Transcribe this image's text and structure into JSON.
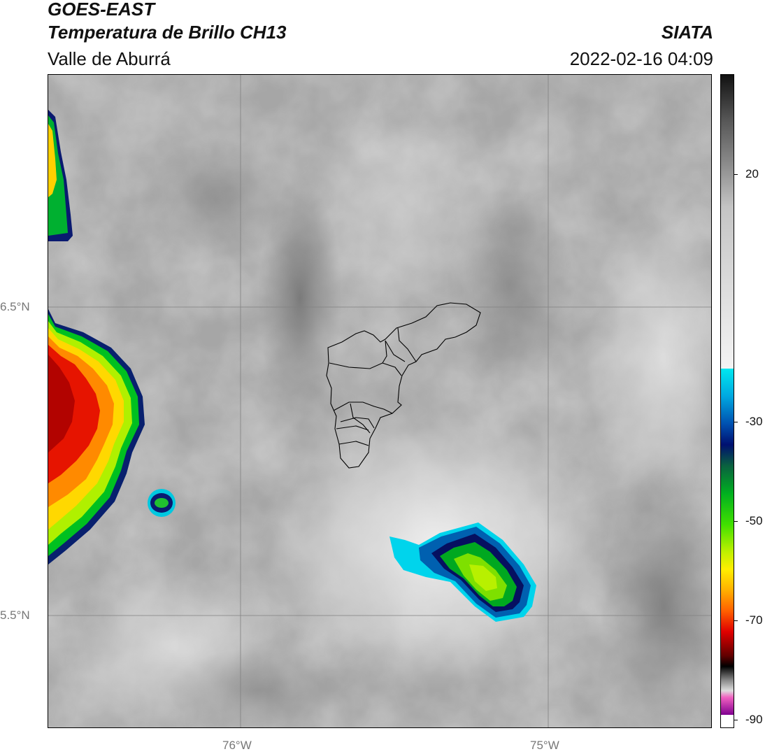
{
  "header": {
    "satellite": "GOES-EAST",
    "product": "Temperatura de Brillo CH13",
    "region": "Valle de Aburrá",
    "organization": "SIATA",
    "timestamp": "2022-02-16 04:09"
  },
  "map": {
    "lat_ticks": [
      "6.5°N",
      "5.5°N"
    ],
    "lon_ticks": [
      "76°W",
      "75°W"
    ],
    "boundary_outline": "Valle de Aburrá municipalities"
  },
  "colorbar": {
    "ticks": [
      "20",
      "-30",
      "-50",
      "-70",
      "-90"
    ],
    "range": [
      -95,
      45
    ],
    "colors": {
      "warm_gray_top": "#111111",
      "mid_gray": "#9a9a9a",
      "light_gray": "#f2f2f2",
      "cyan": "#00e0f0",
      "blue": "#0050b0",
      "navy": "#001070",
      "green": "#00c020",
      "lime": "#a0ff00",
      "yellow": "#ffee00",
      "orange": "#ff8800",
      "red": "#e00000",
      "dark_red": "#500000",
      "black": "#000000",
      "pink": "#e050c0",
      "purple": "#800090"
    }
  }
}
